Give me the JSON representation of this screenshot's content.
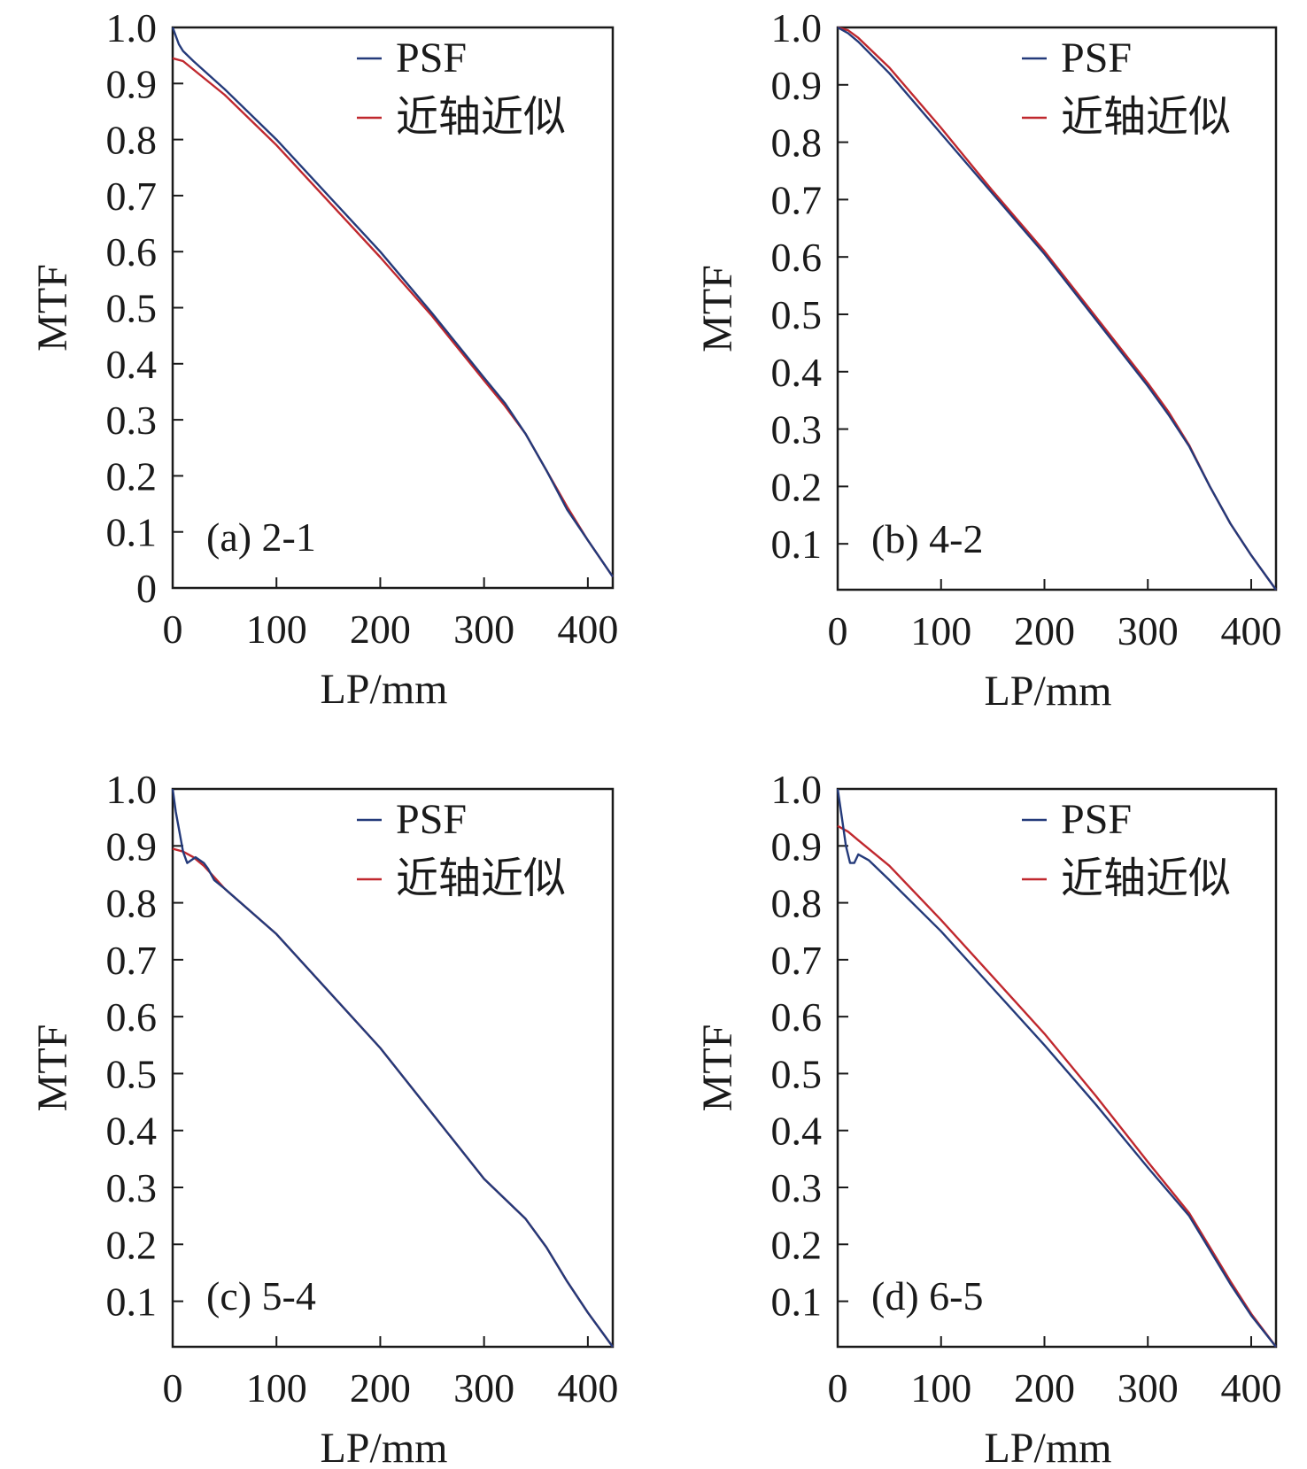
{
  "colors": {
    "psf": "#243a7a",
    "paraxial": "#c0282e",
    "axis": "#1a1a1a"
  },
  "legend": {
    "psf": "PSF",
    "paraxial": "近轴近似",
    "placement": "top-right"
  },
  "chart_data": [
    {
      "type": "line",
      "panel_label": "(a) 2-1",
      "xlabel": "LP/mm",
      "ylabel": "MTF",
      "xlim": [
        0,
        424
      ],
      "ylim": [
        0,
        1.0
      ],
      "x_ticks": [
        "0",
        "100",
        "200",
        "300",
        "400"
      ],
      "y_ticks": [
        "0",
        "0.1",
        "0.2",
        "0.3",
        "0.4",
        "0.5",
        "0.6",
        "0.7",
        "0.8",
        "0.9",
        "1.0"
      ],
      "series": [
        {
          "name": "PSF",
          "x": [
            0,
            3,
            6,
            10,
            20,
            50,
            100,
            150,
            200,
            250,
            300,
            320,
            340,
            360,
            380,
            400,
            424
          ],
          "y": [
            1.0,
            0.985,
            0.97,
            0.958,
            0.94,
            0.89,
            0.8,
            0.7,
            0.6,
            0.49,
            0.375,
            0.33,
            0.275,
            0.21,
            0.14,
            0.085,
            0.02
          ]
        },
        {
          "name": "近轴近似",
          "x": [
            0,
            10,
            20,
            50,
            100,
            150,
            200,
            250,
            300,
            320,
            340,
            360,
            380,
            400,
            424
          ],
          "y": [
            0.945,
            0.94,
            0.925,
            0.88,
            0.79,
            0.69,
            0.59,
            0.485,
            0.37,
            0.325,
            0.275,
            0.21,
            0.145,
            0.085,
            0.02
          ]
        }
      ]
    },
    {
      "type": "line",
      "panel_label": "(b) 4-2",
      "xlabel": "LP/mm",
      "ylabel": "MTF",
      "xlim": [
        0,
        424
      ],
      "ylim": [
        0.02,
        1.0
      ],
      "x_ticks": [
        "0",
        "100",
        "200",
        "300",
        "400"
      ],
      "y_ticks": [
        "0.1",
        "0.2",
        "0.3",
        "0.4",
        "0.5",
        "0.6",
        "0.7",
        "0.8",
        "0.9",
        "1.0"
      ],
      "series": [
        {
          "name": "PSF",
          "x": [
            0,
            10,
            20,
            50,
            100,
            150,
            200,
            250,
            300,
            320,
            340,
            360,
            380,
            400,
            424
          ],
          "y": [
            1.0,
            0.99,
            0.975,
            0.92,
            0.815,
            0.71,
            0.605,
            0.49,
            0.375,
            0.325,
            0.27,
            0.2,
            0.135,
            0.08,
            0.02
          ]
        },
        {
          "name": "近轴近似",
          "x": [
            0,
            10,
            20,
            50,
            100,
            150,
            200,
            250,
            300,
            320,
            340,
            360,
            380,
            400,
            424
          ],
          "y": [
            1.0,
            0.995,
            0.982,
            0.93,
            0.825,
            0.715,
            0.61,
            0.495,
            0.38,
            0.33,
            0.272,
            0.2,
            0.135,
            0.08,
            0.02
          ]
        }
      ]
    },
    {
      "type": "line",
      "panel_label": "(c) 5-4",
      "xlabel": "LP/mm",
      "ylabel": "MTF",
      "xlim": [
        0,
        424
      ],
      "ylim": [
        0.02,
        1.0
      ],
      "x_ticks": [
        "0",
        "100",
        "200",
        "300",
        "400"
      ],
      "y_ticks": [
        "0.1",
        "0.2",
        "0.3",
        "0.4",
        "0.5",
        "0.6",
        "0.7",
        "0.8",
        "0.9",
        "1.0"
      ],
      "series": [
        {
          "name": "PSF",
          "x": [
            0,
            3,
            7,
            10,
            14,
            18,
            22,
            26,
            30,
            34,
            40,
            50,
            100,
            150,
            200,
            250,
            300,
            340,
            360,
            380,
            400,
            424
          ],
          "y": [
            1.0,
            0.96,
            0.92,
            0.89,
            0.87,
            0.875,
            0.88,
            0.875,
            0.87,
            0.86,
            0.84,
            0.825,
            0.745,
            0.645,
            0.545,
            0.43,
            0.315,
            0.245,
            0.195,
            0.135,
            0.08,
            0.02
          ]
        },
        {
          "name": "近轴近似",
          "x": [
            0,
            10,
            20,
            30,
            40,
            50,
            100,
            150,
            200,
            250,
            300,
            340,
            360,
            380,
            400,
            424
          ],
          "y": [
            0.895,
            0.89,
            0.88,
            0.865,
            0.845,
            0.825,
            0.745,
            0.645,
            0.545,
            0.43,
            0.315,
            0.245,
            0.195,
            0.135,
            0.08,
            0.02
          ]
        }
      ]
    },
    {
      "type": "line",
      "panel_label": "(d) 6-5",
      "xlabel": "LP/mm",
      "ylabel": "MTF",
      "xlim": [
        0,
        424
      ],
      "ylim": [
        0.02,
        1.0
      ],
      "x_ticks": [
        "0",
        "100",
        "200",
        "300",
        "400"
      ],
      "y_ticks": [
        "0.1",
        "0.2",
        "0.3",
        "0.4",
        "0.5",
        "0.6",
        "0.7",
        "0.8",
        "0.9",
        "1.0"
      ],
      "series": [
        {
          "name": "PSF",
          "x": [
            0,
            4,
            8,
            12,
            16,
            20,
            30,
            50,
            100,
            150,
            200,
            250,
            300,
            340,
            360,
            380,
            400,
            424
          ],
          "y": [
            1.0,
            0.95,
            0.9,
            0.87,
            0.87,
            0.885,
            0.875,
            0.84,
            0.75,
            0.65,
            0.55,
            0.445,
            0.335,
            0.25,
            0.19,
            0.13,
            0.075,
            0.02
          ]
        },
        {
          "name": "近轴近似",
          "x": [
            0,
            10,
            20,
            50,
            100,
            150,
            200,
            250,
            300,
            340,
            360,
            380,
            400,
            424
          ],
          "y": [
            0.935,
            0.925,
            0.91,
            0.865,
            0.77,
            0.67,
            0.57,
            0.46,
            0.345,
            0.255,
            0.195,
            0.135,
            0.078,
            0.02
          ]
        }
      ]
    }
  ]
}
